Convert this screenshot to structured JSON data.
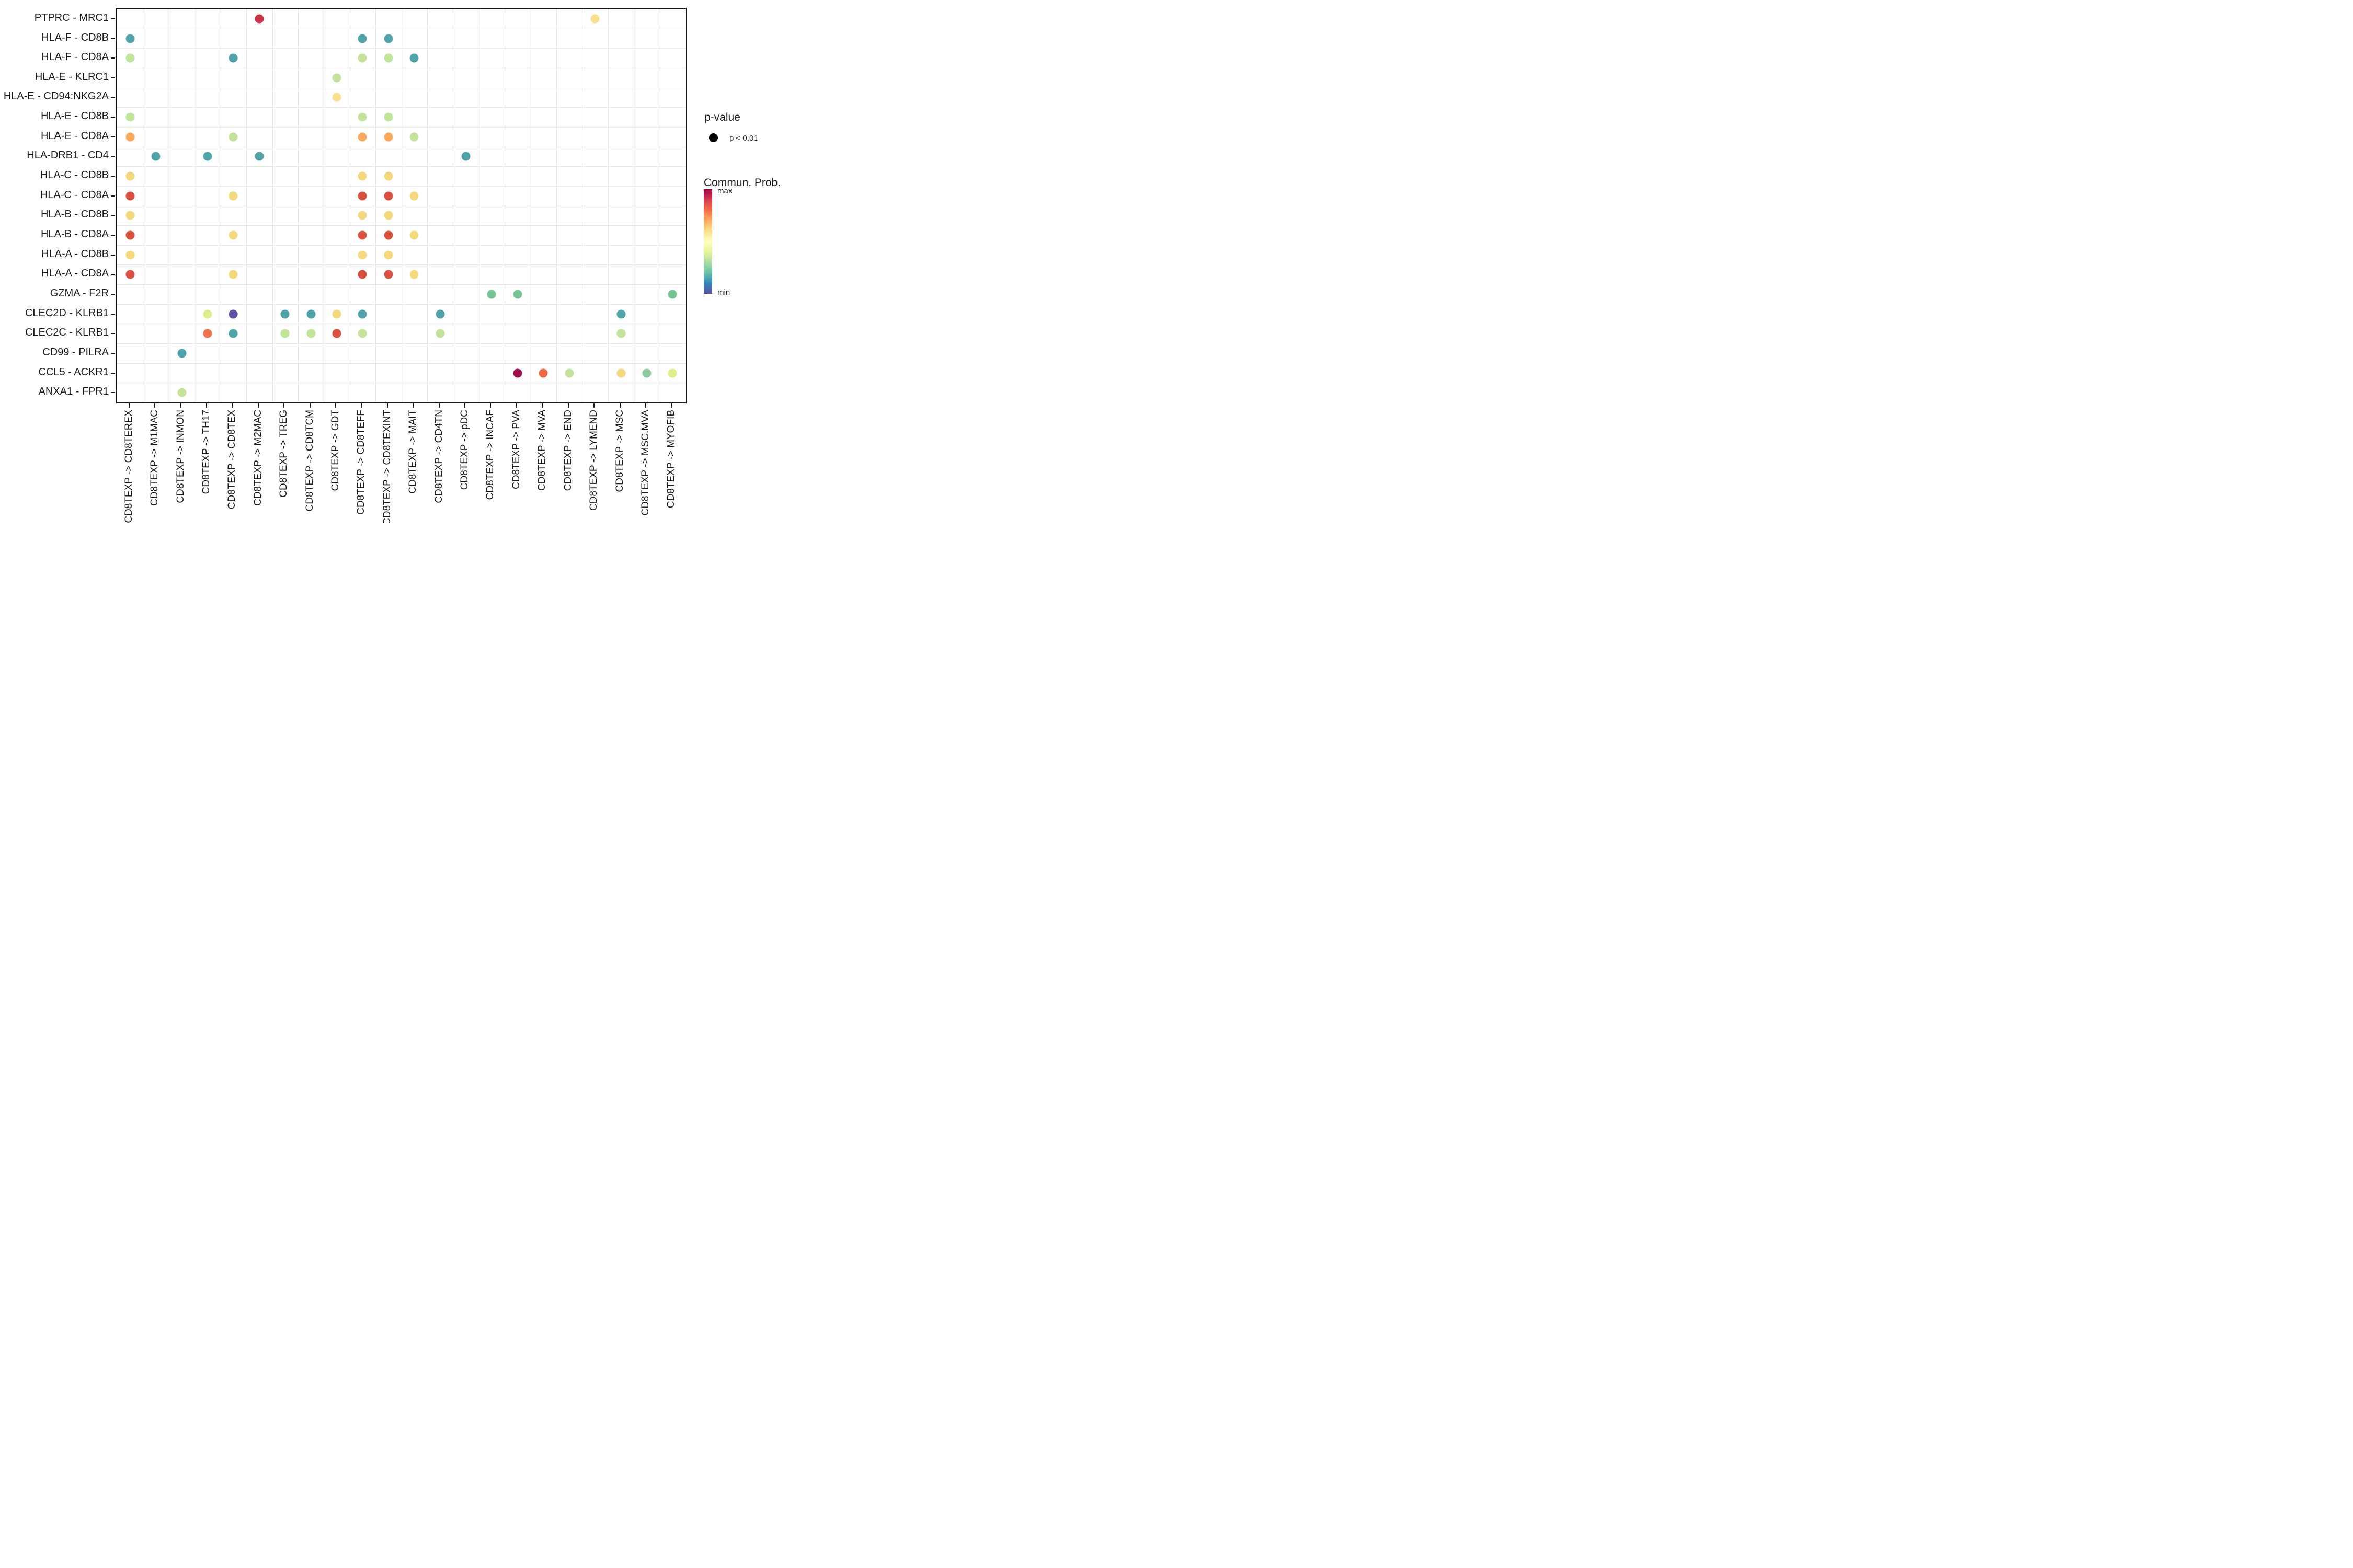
{
  "chart_data": {
    "type": "scatter",
    "subtype": "dotplot-cellchat",
    "title": "",
    "xlabel": "",
    "ylabel": "",
    "grid": true,
    "x_categories": [
      "CD8TEXP -> CD8TEREX",
      "CD8TEXP -> M1MAC",
      "CD8TEXP -> INMON",
      "CD8TEXP -> TH17",
      "CD8TEXP -> CD8TEX",
      "CD8TEXP -> M2MAC",
      "CD8TEXP -> TREG",
      "CD8TEXP -> CD8TCM",
      "CD8TEXP -> GDT",
      "CD8TEXP -> CD8TEFF",
      "CD8TEXP -> CD8TEXINT",
      "CD8TEXP -> MAIT",
      "CD8TEXP -> CD4TN",
      "CD8TEXP -> pDC",
      "CD8TEXP -> INCAF",
      "CD8TEXP -> PVA",
      "CD8TEXP -> MVA",
      "CD8TEXP -> END",
      "CD8TEXP -> LYMEND",
      "CD8TEXP -> MSC",
      "CD8TEXP -> MSC.MVA",
      "CD8TEXP -> MYOFIB"
    ],
    "y_categories": [
      "PTPRC - MRC1",
      "HLA-F - CD8B",
      "HLA-F - CD8A",
      "HLA-E - KLRC1",
      "HLA-E - CD94:NKG2A",
      "HLA-E - CD8B",
      "HLA-E - CD8A",
      "HLA-DRB1 - CD4",
      "HLA-C - CD8B",
      "HLA-C - CD8A",
      "HLA-B - CD8B",
      "HLA-B - CD8A",
      "HLA-A - CD8B",
      "HLA-A - CD8A",
      "GZMA - F2R",
      "CLEC2D - KLRB1",
      "CLEC2C - KLRB1",
      "CD99 - PILRA",
      "CCL5 - ACKR1",
      "ANXA1 - FPR1"
    ],
    "palette": {
      "teal": "#50A3A9",
      "yellow_green": "#C2E39A",
      "pale_yellow_green": "#E0ED8C",
      "yellow": "#F3D97C",
      "yellow_light": "#F8DF8C",
      "orange": "#F9A85C",
      "orange_red": "#F0714B",
      "orange_mva": "#ED6A46",
      "red": "#D9503F",
      "crimson": "#C8354B",
      "maroon": "#9F0C4A",
      "purple": "#5D53A4",
      "green": "#77C493",
      "green_light": "#8BCB9D"
    },
    "points": [
      {
        "x": "CD8TEXP -> M2MAC",
        "y": "PTPRC - MRC1",
        "color": "crimson"
      },
      {
        "x": "CD8TEXP -> LYMEND",
        "y": "PTPRC - MRC1",
        "color": "yellow_light"
      },
      {
        "x": "CD8TEXP -> CD8TEREX",
        "y": "HLA-F - CD8B",
        "color": "teal"
      },
      {
        "x": "CD8TEXP -> CD8TEFF",
        "y": "HLA-F - CD8B",
        "color": "teal"
      },
      {
        "x": "CD8TEXP -> CD8TEXINT",
        "y": "HLA-F - CD8B",
        "color": "teal"
      },
      {
        "x": "CD8TEXP -> CD8TEREX",
        "y": "HLA-F - CD8A",
        "color": "yellow_green"
      },
      {
        "x": "CD8TEXP -> CD8TEX",
        "y": "HLA-F - CD8A",
        "color": "teal"
      },
      {
        "x": "CD8TEXP -> CD8TEFF",
        "y": "HLA-F - CD8A",
        "color": "yellow_green"
      },
      {
        "x": "CD8TEXP -> CD8TEXINT",
        "y": "HLA-F - CD8A",
        "color": "yellow_green"
      },
      {
        "x": "CD8TEXP -> MAIT",
        "y": "HLA-F - CD8A",
        "color": "teal"
      },
      {
        "x": "CD8TEXP -> GDT",
        "y": "HLA-E - KLRC1",
        "color": "yellow_green"
      },
      {
        "x": "CD8TEXP -> GDT",
        "y": "HLA-E - CD94:NKG2A",
        "color": "yellow_light"
      },
      {
        "x": "CD8TEXP -> CD8TEREX",
        "y": "HLA-E - CD8B",
        "color": "yellow_green"
      },
      {
        "x": "CD8TEXP -> CD8TEFF",
        "y": "HLA-E - CD8B",
        "color": "yellow_green"
      },
      {
        "x": "CD8TEXP -> CD8TEXINT",
        "y": "HLA-E - CD8B",
        "color": "yellow_green"
      },
      {
        "x": "CD8TEXP -> CD8TEREX",
        "y": "HLA-E - CD8A",
        "color": "orange"
      },
      {
        "x": "CD8TEXP -> CD8TEX",
        "y": "HLA-E - CD8A",
        "color": "yellow_green"
      },
      {
        "x": "CD8TEXP -> CD8TEFF",
        "y": "HLA-E - CD8A",
        "color": "orange"
      },
      {
        "x": "CD8TEXP -> CD8TEXINT",
        "y": "HLA-E - CD8A",
        "color": "orange"
      },
      {
        "x": "CD8TEXP -> MAIT",
        "y": "HLA-E - CD8A",
        "color": "yellow_green"
      },
      {
        "x": "CD8TEXP -> M1MAC",
        "y": "HLA-DRB1 - CD4",
        "color": "teal"
      },
      {
        "x": "CD8TEXP -> TH17",
        "y": "HLA-DRB1 - CD4",
        "color": "teal"
      },
      {
        "x": "CD8TEXP -> M2MAC",
        "y": "HLA-DRB1 - CD4",
        "color": "teal"
      },
      {
        "x": "CD8TEXP -> pDC",
        "y": "HLA-DRB1 - CD4",
        "color": "teal"
      },
      {
        "x": "CD8TEXP -> CD8TEREX",
        "y": "HLA-C - CD8B",
        "color": "yellow"
      },
      {
        "x": "CD8TEXP -> CD8TEFF",
        "y": "HLA-C - CD8B",
        "color": "yellow"
      },
      {
        "x": "CD8TEXP -> CD8TEXINT",
        "y": "HLA-C - CD8B",
        "color": "yellow"
      },
      {
        "x": "CD8TEXP -> CD8TEREX",
        "y": "HLA-C - CD8A",
        "color": "red"
      },
      {
        "x": "CD8TEXP -> CD8TEX",
        "y": "HLA-C - CD8A",
        "color": "yellow"
      },
      {
        "x": "CD8TEXP -> CD8TEFF",
        "y": "HLA-C - CD8A",
        "color": "red"
      },
      {
        "x": "CD8TEXP -> CD8TEXINT",
        "y": "HLA-C - CD8A",
        "color": "red"
      },
      {
        "x": "CD8TEXP -> MAIT",
        "y": "HLA-C - CD8A",
        "color": "yellow"
      },
      {
        "x": "CD8TEXP -> CD8TEREX",
        "y": "HLA-B - CD8B",
        "color": "yellow"
      },
      {
        "x": "CD8TEXP -> CD8TEFF",
        "y": "HLA-B - CD8B",
        "color": "yellow"
      },
      {
        "x": "CD8TEXP -> CD8TEXINT",
        "y": "HLA-B - CD8B",
        "color": "yellow"
      },
      {
        "x": "CD8TEXP -> CD8TEREX",
        "y": "HLA-B - CD8A",
        "color": "red"
      },
      {
        "x": "CD8TEXP -> CD8TEX",
        "y": "HLA-B - CD8A",
        "color": "yellow"
      },
      {
        "x": "CD8TEXP -> CD8TEFF",
        "y": "HLA-B - CD8A",
        "color": "red"
      },
      {
        "x": "CD8TEXP -> CD8TEXINT",
        "y": "HLA-B - CD8A",
        "color": "red"
      },
      {
        "x": "CD8TEXP -> MAIT",
        "y": "HLA-B - CD8A",
        "color": "yellow"
      },
      {
        "x": "CD8TEXP -> CD8TEREX",
        "y": "HLA-A - CD8B",
        "color": "yellow"
      },
      {
        "x": "CD8TEXP -> CD8TEFF",
        "y": "HLA-A - CD8B",
        "color": "yellow"
      },
      {
        "x": "CD8TEXP -> CD8TEXINT",
        "y": "HLA-A - CD8B",
        "color": "yellow"
      },
      {
        "x": "CD8TEXP -> CD8TEREX",
        "y": "HLA-A - CD8A",
        "color": "red"
      },
      {
        "x": "CD8TEXP -> CD8TEX",
        "y": "HLA-A - CD8A",
        "color": "yellow"
      },
      {
        "x": "CD8TEXP -> CD8TEFF",
        "y": "HLA-A - CD8A",
        "color": "red"
      },
      {
        "x": "CD8TEXP -> CD8TEXINT",
        "y": "HLA-A - CD8A",
        "color": "red"
      },
      {
        "x": "CD8TEXP -> MAIT",
        "y": "HLA-A - CD8A",
        "color": "yellow"
      },
      {
        "x": "CD8TEXP -> INCAF",
        "y": "GZMA - F2R",
        "color": "green"
      },
      {
        "x": "CD8TEXP -> PVA",
        "y": "GZMA - F2R",
        "color": "green"
      },
      {
        "x": "CD8TEXP -> MYOFIB",
        "y": "GZMA - F2R",
        "color": "green"
      },
      {
        "x": "CD8TEXP -> TH17",
        "y": "CLEC2D - KLRB1",
        "color": "pale_yellow_green"
      },
      {
        "x": "CD8TEXP -> CD8TEX",
        "y": "CLEC2D - KLRB1",
        "color": "purple"
      },
      {
        "x": "CD8TEXP -> TREG",
        "y": "CLEC2D - KLRB1",
        "color": "teal"
      },
      {
        "x": "CD8TEXP -> CD8TCM",
        "y": "CLEC2D - KLRB1",
        "color": "teal"
      },
      {
        "x": "CD8TEXP -> GDT",
        "y": "CLEC2D - KLRB1",
        "color": "yellow"
      },
      {
        "x": "CD8TEXP -> CD8TEFF",
        "y": "CLEC2D - KLRB1",
        "color": "teal"
      },
      {
        "x": "CD8TEXP -> CD4TN",
        "y": "CLEC2D - KLRB1",
        "color": "teal"
      },
      {
        "x": "CD8TEXP -> MSC",
        "y": "CLEC2D - KLRB1",
        "color": "teal"
      },
      {
        "x": "CD8TEXP -> TH17",
        "y": "CLEC2C - KLRB1",
        "color": "orange_red"
      },
      {
        "x": "CD8TEXP -> CD8TEX",
        "y": "CLEC2C - KLRB1",
        "color": "teal"
      },
      {
        "x": "CD8TEXP -> TREG",
        "y": "CLEC2C - KLRB1",
        "color": "yellow_green"
      },
      {
        "x": "CD8TEXP -> CD8TCM",
        "y": "CLEC2C - KLRB1",
        "color": "yellow_green"
      },
      {
        "x": "CD8TEXP -> GDT",
        "y": "CLEC2C - KLRB1",
        "color": "red"
      },
      {
        "x": "CD8TEXP -> CD8TEFF",
        "y": "CLEC2C - KLRB1",
        "color": "yellow_green"
      },
      {
        "x": "CD8TEXP -> CD4TN",
        "y": "CLEC2C - KLRB1",
        "color": "yellow_green"
      },
      {
        "x": "CD8TEXP -> MSC",
        "y": "CLEC2C - KLRB1",
        "color": "yellow_green"
      },
      {
        "x": "CD8TEXP -> INMON",
        "y": "CD99 - PILRA",
        "color": "teal"
      },
      {
        "x": "CD8TEXP -> PVA",
        "y": "CCL5 - ACKR1",
        "color": "maroon"
      },
      {
        "x": "CD8TEXP -> MVA",
        "y": "CCL5 - ACKR1",
        "color": "orange_mva"
      },
      {
        "x": "CD8TEXP -> END",
        "y": "CCL5 - ACKR1",
        "color": "yellow_green"
      },
      {
        "x": "CD8TEXP -> MSC",
        "y": "CCL5 - ACKR1",
        "color": "yellow"
      },
      {
        "x": "CD8TEXP -> MSC.MVA",
        "y": "CCL5 - ACKR1",
        "color": "green_light"
      },
      {
        "x": "CD8TEXP -> MYOFIB",
        "y": "CCL5 - ACKR1",
        "color": "pale_yellow_green"
      },
      {
        "x": "CD8TEXP -> INMON",
        "y": "ANXA1 - FPR1",
        "color": "yellow_green"
      }
    ],
    "legend": {
      "position": "right",
      "p_value": {
        "title": "p-value",
        "item_label": "p < 0.01",
        "dot_color": "#000000"
      },
      "commun_prob": {
        "title": "Commun. Prob.",
        "max_label": "max",
        "min_label": "min",
        "gradient_top_to_bottom": [
          "#9E0142",
          "#D53E4F",
          "#F46D43",
          "#FDAE61",
          "#FEE08B",
          "#FFFFBF",
          "#E6F598",
          "#ABDDA4",
          "#66C2A5",
          "#3288BD",
          "#5E4FA2"
        ]
      }
    },
    "panel_border_color": "#161616",
    "gridline_color": "#e6e6e6"
  }
}
